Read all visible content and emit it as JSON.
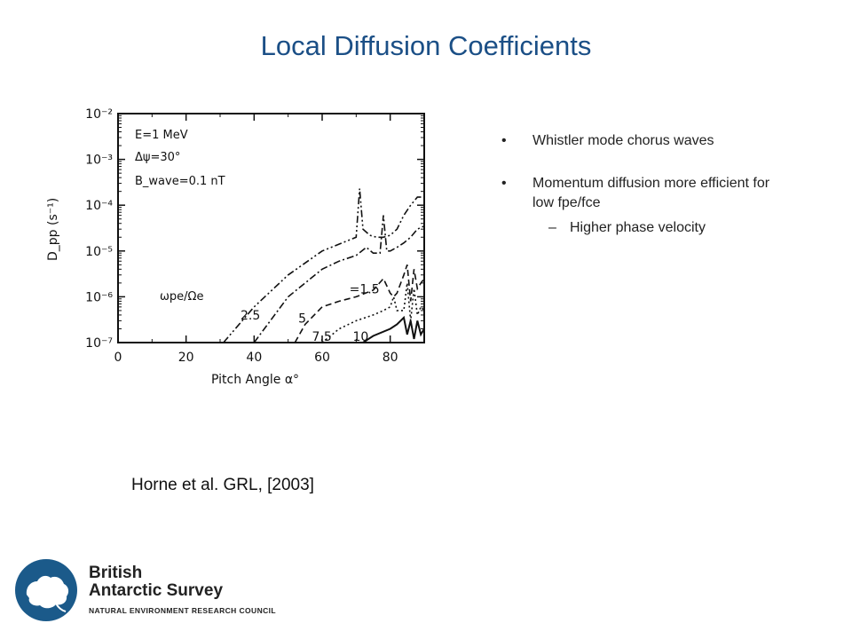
{
  "slide": {
    "title": "Local Diffusion Coefficients",
    "bullets": [
      {
        "text": "Whistler mode chorus waves",
        "sub": []
      },
      {
        "text": "Momentum diffusion more efficient for low fpe/fce",
        "sub": [
          "Higher phase velocity"
        ]
      }
    ],
    "bullet_glyph": "•",
    "dash_glyph": "–",
    "citation": "Horne et al. GRL, [2003]"
  },
  "logo": {
    "line1": "British",
    "line2": "Antarctic Survey",
    "subtitle": "NATURAL ENVIRONMENT RESEARCH COUNCIL",
    "color": "#1b5a8a",
    "icon": "antarctica-globe-icon"
  },
  "chart_data": {
    "type": "line",
    "yscale": "log",
    "xlabel": "Pitch Angle α°",
    "ylabel": "D_pp (s⁻¹)",
    "xlim": [
      0,
      90
    ],
    "ylim": [
      1e-07,
      0.01
    ],
    "x_ticks": [
      "0",
      "20",
      "40",
      "60",
      "80"
    ],
    "y_ticks": [
      "10⁻²",
      "10⁻³",
      "10⁻⁴",
      "10⁻⁵",
      "10⁻⁶",
      "10⁻⁷"
    ],
    "annotations": [
      "E=1 MeV",
      "Δψ=30°",
      "B_wave=0.1 nT"
    ],
    "legend_title": "ωpe/Ωe",
    "series": [
      {
        "name": "1.5",
        "dash": "8,3,2,3,2,3",
        "x": [
          31,
          40,
          50,
          60,
          70,
          71,
          72,
          74,
          76,
          78,
          80,
          82,
          84,
          86,
          88,
          90
        ],
        "y": [
          1e-07,
          6e-07,
          3e-06,
          1e-05,
          2e-05,
          0.00023,
          3e-05,
          2.2e-05,
          2e-05,
          2e-05,
          2.2e-05,
          3e-05,
          6e-05,
          0.0001,
          0.00015,
          0.00015
        ]
      },
      {
        "name": "2.5",
        "dash": "8,3,2,3",
        "x": [
          40,
          50,
          60,
          65,
          70,
          73,
          75,
          77,
          78,
          79,
          80,
          82,
          84,
          86,
          88,
          90
        ],
        "y": [
          1e-07,
          1e-06,
          4e-06,
          6e-06,
          8e-06,
          1.2e-05,
          9e-06,
          9e-06,
          6e-05,
          1e-05,
          1e-05,
          1.2e-05,
          1.5e-05,
          2e-05,
          3e-05,
          3.5e-05
        ]
      },
      {
        "name": "5",
        "dash": "7,4",
        "x": [
          52,
          55,
          60,
          65,
          70,
          75,
          78,
          80,
          81,
          82,
          84,
          85,
          86,
          87,
          88,
          89,
          90
        ],
        "y": [
          1e-07,
          2.5e-07,
          6e-07,
          8e-07,
          1e-06,
          1.4e-06,
          2.5e-06,
          1.2e-06,
          1e-06,
          1.2e-06,
          3e-06,
          5e-06,
          8e-07,
          4e-06,
          1.5e-06,
          2e-06,
          2.5e-06
        ]
      },
      {
        "name": "7.5",
        "dash": "2,3",
        "x": [
          60,
          65,
          70,
          75,
          78,
          80,
          81,
          82,
          84,
          85,
          86,
          87,
          88,
          89,
          90
        ],
        "y": [
          1e-07,
          2e-07,
          3e-07,
          4e-07,
          5e-07,
          6e-07,
          1e-06,
          5e-07,
          5e-07,
          2e-06,
          3e-07,
          1.5e-06,
          4e-07,
          6e-07,
          5e-07
        ]
      },
      {
        "name": "10",
        "dash": "",
        "x": [
          72,
          75,
          80,
          82,
          84,
          85,
          86,
          87,
          88,
          89,
          90
        ],
        "y": [
          1e-07,
          1.4e-07,
          2e-07,
          2.5e-07,
          3.5e-07,
          1.5e-07,
          3e-07,
          1.2e-07,
          3e-07,
          1.5e-07,
          2e-07
        ]
      }
    ]
  }
}
